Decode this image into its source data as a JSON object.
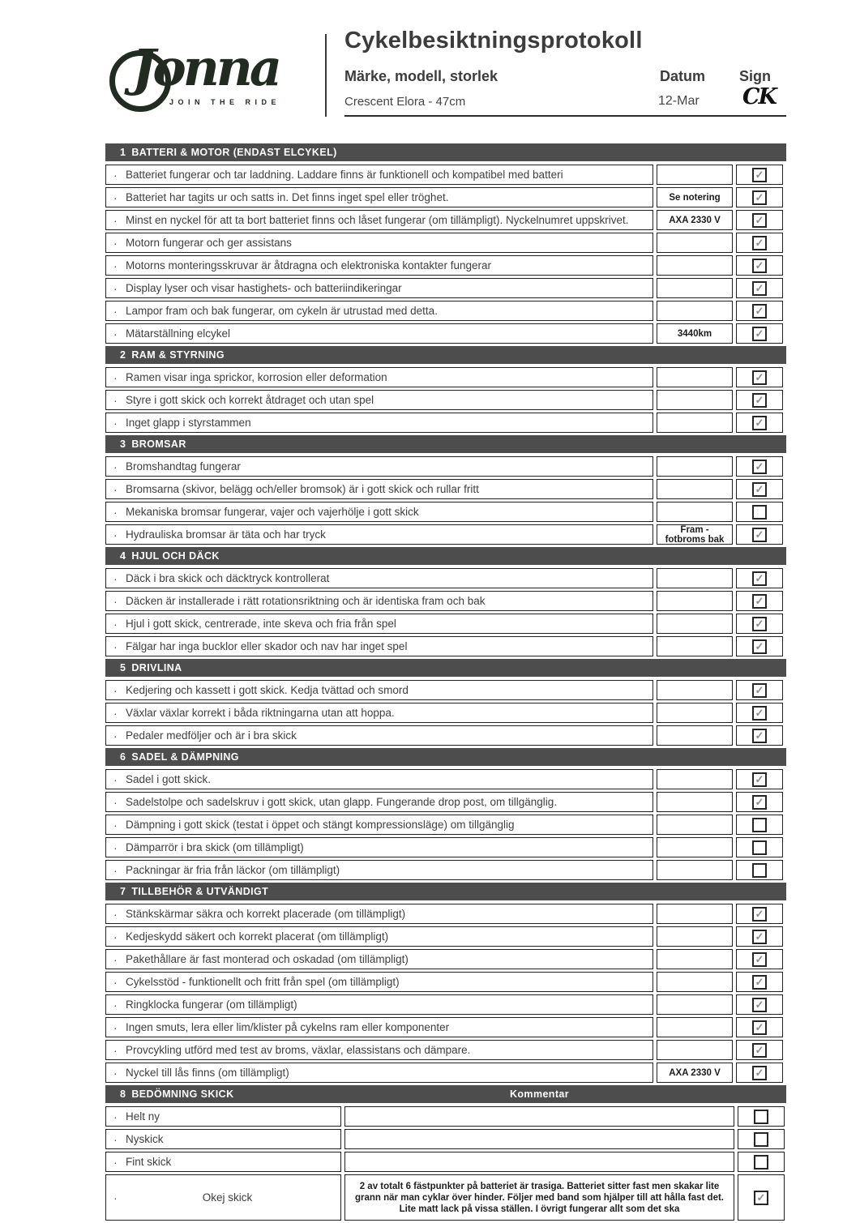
{
  "colors": {
    "logo": "#222b22",
    "section_header_bg": "#4d4d4d",
    "text": "#3f3f3f",
    "border": "#1f1f1f"
  },
  "header": {
    "logo_text": "Jonna",
    "logo_tagline": "JOIN THE RIDE",
    "title": "Cykelbesiktningsprotokoll",
    "subtitle": "Märke, modell, storlek",
    "datum_label": "Datum",
    "sign_label": "Sign",
    "bike_value": "Crescent Elora - 47cm",
    "datum_value": "12-Mar",
    "sign_value": "CK"
  },
  "table": {
    "sections": [
      {
        "number": "1",
        "title": "BATTERI & MOTOR (ENDAST ELCYKEL)",
        "rows": [
          {
            "text": "Batteriet fungerar och tar laddning.  Laddare finns är funktionell och kompatibel med batteri",
            "note": "",
            "checked": true
          },
          {
            "text": "Batteriet har tagits ur och satts in. Det finns inget spel eller tröghet.",
            "note": "Se notering",
            "checked": true
          },
          {
            "text": "Minst en nyckel för att ta bort batteriet finns och låset fungerar (om tillämpligt). Nyckelnumret uppskrivet.",
            "note": "AXA 2330 V",
            "checked": true
          },
          {
            "text": "Motorn fungerar och ger assistans",
            "note": "",
            "checked": true
          },
          {
            "text": "Motorns monteringsskruvar är åtdragna och elektroniska kontakter fungerar",
            "note": "",
            "checked": true
          },
          {
            "text": "Display lyser och visar hastighets- och batteriindikeringar",
            "note": "",
            "checked": true
          },
          {
            "text": "Lampor fram och bak fungerar, om cykeln är utrustad med detta.",
            "note": "",
            "checked": true
          },
          {
            "text": "Mätarställning elcykel",
            "note": "3440km",
            "checked": true
          }
        ]
      },
      {
        "number": "2",
        "title": "RAM & STYRNING",
        "rows": [
          {
            "text": "Ramen visar inga sprickor, korrosion eller deformation",
            "note": "",
            "checked": true
          },
          {
            "text": "Styre i gott skick och korrekt åtdraget och utan spel",
            "note": "",
            "checked": true
          },
          {
            "text": "Inget glapp i styrstammen",
            "note": "",
            "checked": true
          }
        ]
      },
      {
        "number": "3",
        "title": "BROMSAR",
        "rows": [
          {
            "text": "Bromshandtag fungerar",
            "note": "",
            "checked": true
          },
          {
            "text": "Bromsarna (skivor, belägg och/eller bromsok) är i gott skick och rullar fritt",
            "note": "",
            "checked": true
          },
          {
            "text": "Mekaniska bromsar fungerar, vajer och vajerhölje i gott skick",
            "note": "",
            "checked": false
          },
          {
            "text": "Hydrauliska bromsar är täta och har tryck",
            "note": "Fram - fotbroms bak",
            "checked": true
          }
        ]
      },
      {
        "number": "4",
        "title": "HJUL OCH DÄCK",
        "rows": [
          {
            "text": "Däck i bra skick och däcktryck kontrollerat",
            "note": "",
            "checked": true
          },
          {
            "text": "Däcken är  installerade i rätt rotationsriktning och är identiska fram och bak",
            "note": "",
            "checked": true
          },
          {
            "text": "Hjul i gott skick, centrerade, inte skeva och fria från spel",
            "note": "",
            "checked": true
          },
          {
            "text": "Fälgar har inga bucklor eller skador och nav har inget spel",
            "note": "",
            "checked": true
          }
        ]
      },
      {
        "number": "5",
        "title": "DRIVLINA",
        "rows": [
          {
            "text": "Kedjering och kassett i gott skick. Kedja tvättad och smord",
            "note": "",
            "checked": true
          },
          {
            "text": "Växlar växlar korrekt i båda riktningarna utan att hoppa.",
            "note": "",
            "checked": true
          },
          {
            "text": "Pedaler medföljer och är i bra skick",
            "note": "",
            "checked": true
          }
        ]
      },
      {
        "number": "6",
        "title": "SADEL & DÄMPNING",
        "rows": [
          {
            "text": "Sadel i gott skick.",
            "note": "",
            "checked": true
          },
          {
            "text": "Sadelstolpe och sadelskruv i gott skick, utan glapp. Fungerande drop post, om tillgänglig.",
            "note": "",
            "checked": true
          },
          {
            "text": "Dämpning i gott skick (testat i öppet och stängt kompressionsläge) om tillgänglig",
            "note": "",
            "checked": false
          },
          {
            "text": "Dämparrör i bra skick (om tillämpligt)",
            "note": "",
            "checked": false
          },
          {
            "text": "Packningar är fria från läckor (om tillämpligt)",
            "note": "",
            "checked": false
          }
        ]
      },
      {
        "number": "7",
        "title": "TILLBEHÖR & UTVÄNDIGT",
        "rows": [
          {
            "text": "Stänkskärmar säkra och korrekt placerade (om tillämpligt)",
            "note": "",
            "checked": true
          },
          {
            "text": "Kedjeskydd säkert och korrekt placerat (om tillämpligt)",
            "note": "",
            "checked": true
          },
          {
            "text": "Pakethållare är fast monterad och oskadad (om tillämpligt)",
            "note": "",
            "checked": true
          },
          {
            "text": "Cykelsstöd - funktionellt och fritt från spel (om tillämpligt)",
            "note": "",
            "checked": true
          },
          {
            "text": "Ringklocka fungerar (om tillämpligt)",
            "note": "",
            "checked": true
          },
          {
            "text": "Ingen smuts, lera eller lim/klister på cykelns ram eller komponenter",
            "note": "",
            "checked": true
          },
          {
            "text": "Provcykling utförd med test av broms, växlar, elassistans och dämpare.",
            "note": "",
            "checked": true
          },
          {
            "text": "Nyckel till lås finns (om tillämpligt)",
            "note": "AXA 2330 V",
            "checked": true
          }
        ]
      },
      {
        "number": "8",
        "title": "BEDÖMNING SKICK",
        "kommentar_label": "Kommentar",
        "layout": "comment",
        "rows": [
          {
            "text": "Helt ny",
            "comment": "",
            "checked": false
          },
          {
            "text": "Nyskick",
            "comment": "",
            "checked": false
          },
          {
            "text": "Fint skick",
            "comment": "",
            "checked": false
          },
          {
            "text": "Okej skick",
            "comment": "2 av totalt 6 fästpunkter på batteriet är trasiga. Batteriet sitter fast men skakar lite grann när man cyklar över hinder. Följer med band som hjälper till att hålla fast det. Lite matt lack på vissa ställen. I övrigt fungerar allt som det ska",
            "checked": true
          }
        ]
      }
    ]
  }
}
